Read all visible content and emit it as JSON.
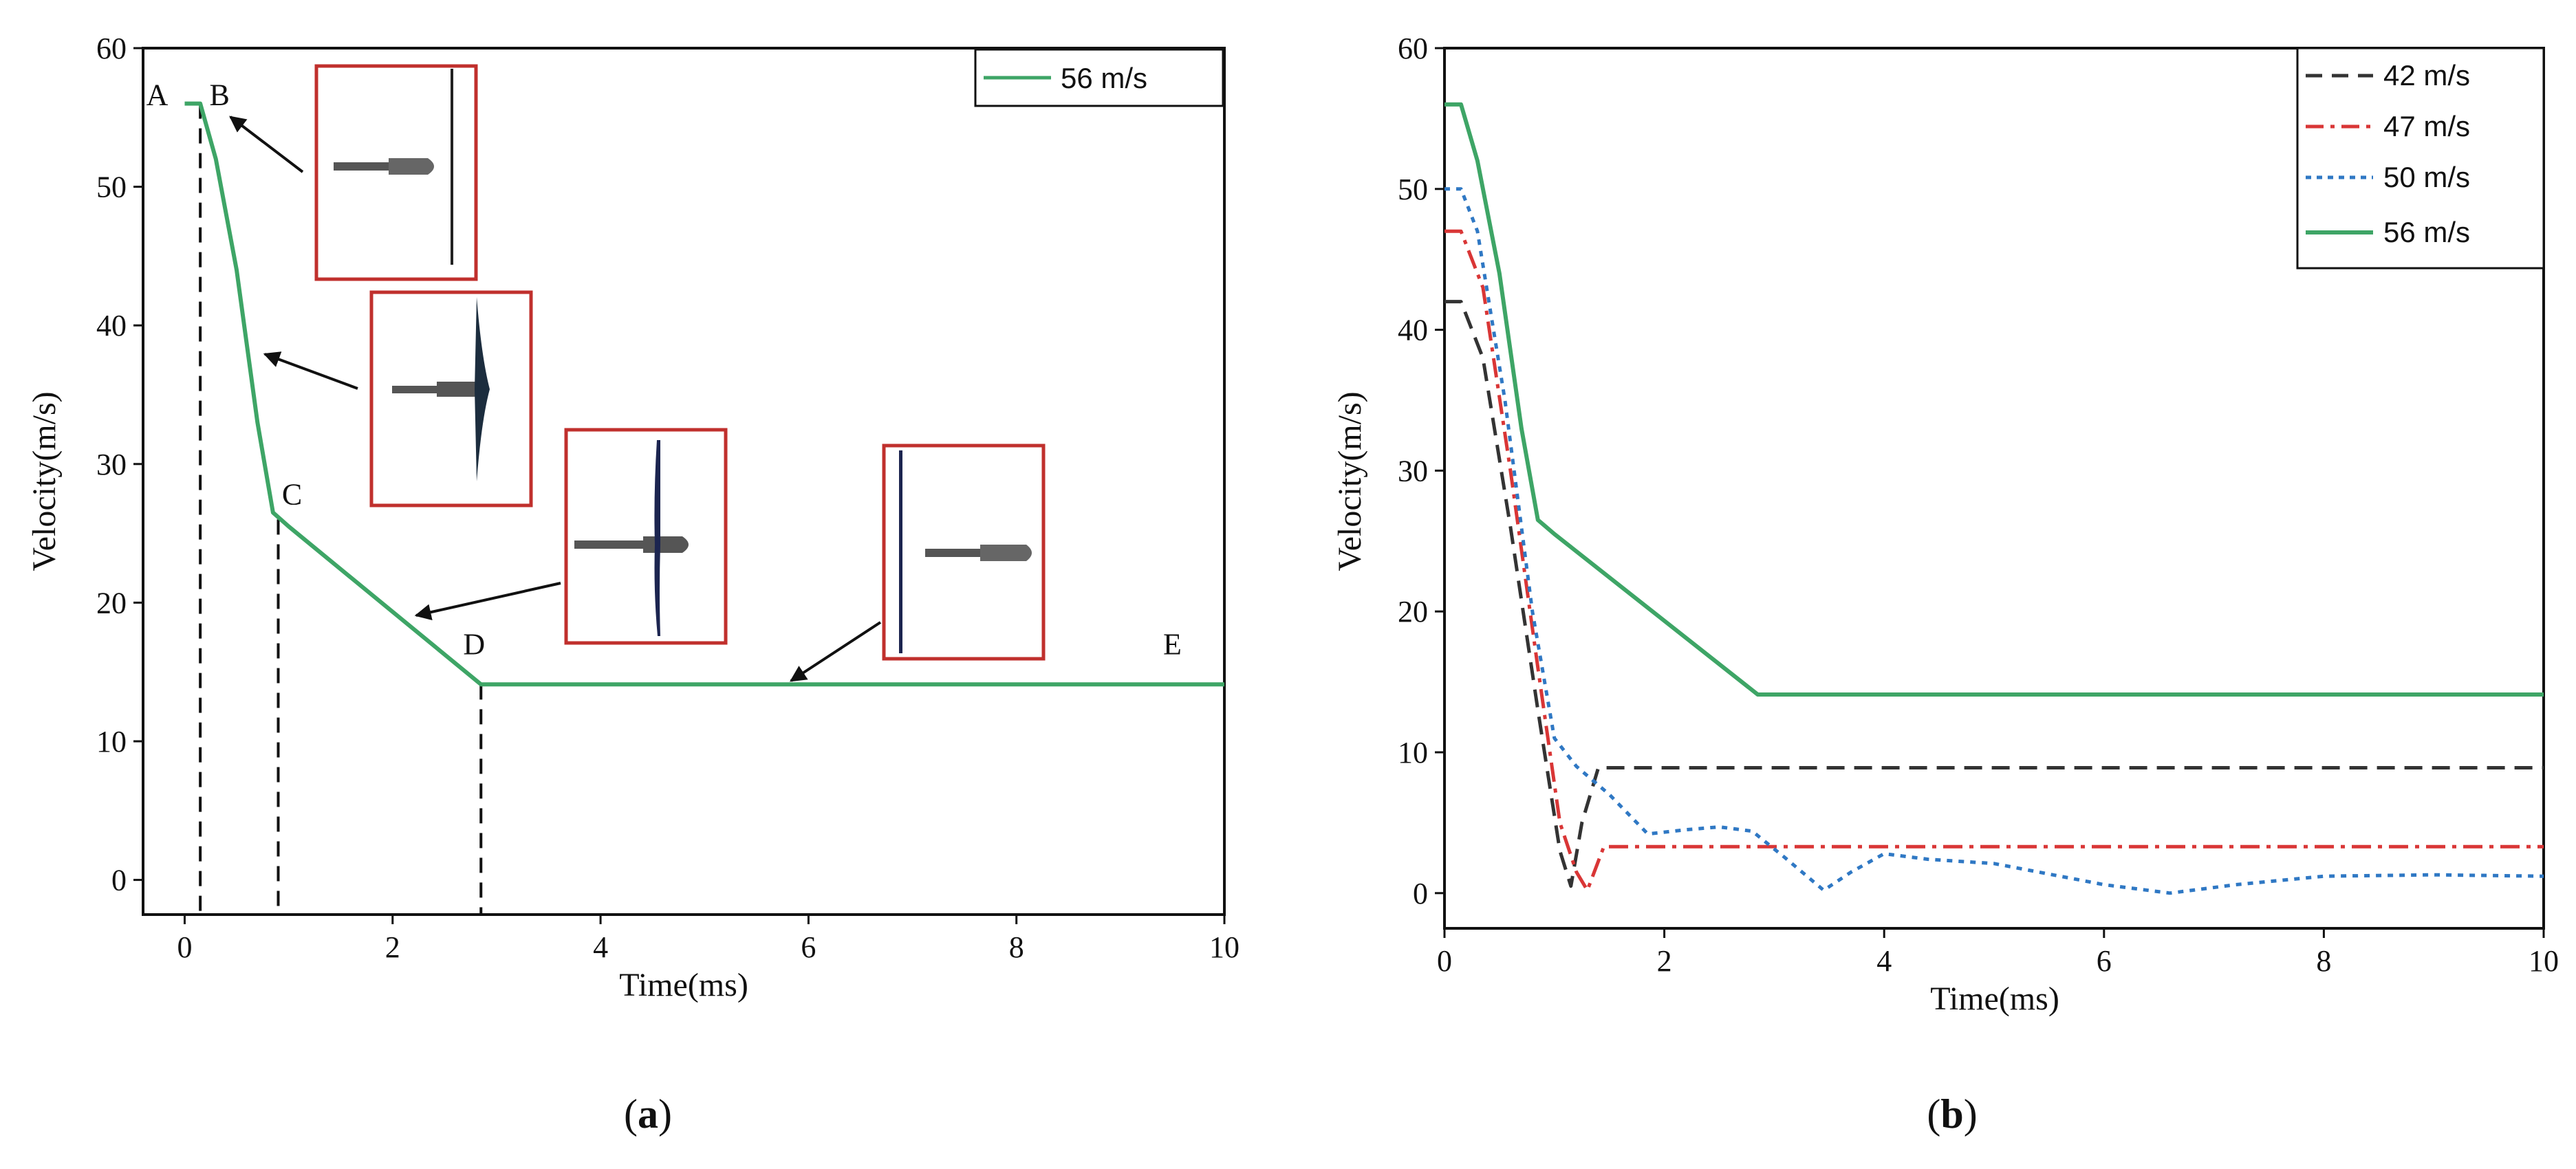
{
  "chart_data": [
    {
      "panel": "a",
      "type": "line",
      "caption_letter": "a",
      "xlabel": "Time(ms)",
      "ylabel": "Velocity(m/s)",
      "xlim": [
        -0.4,
        10
      ],
      "ylim": [
        -2.5,
        60
      ],
      "xticks": [
        0,
        2,
        4,
        6,
        8,
        10
      ],
      "yticks": [
        0,
        10,
        20,
        30,
        40,
        50,
        60
      ],
      "legend_position": "top-right",
      "series": [
        {
          "name": "56 m/s",
          "color": "#3ea566",
          "style": "solid",
          "x": [
            0,
            0.15,
            0.3,
            0.5,
            0.7,
            0.85,
            1.0,
            2.85,
            10
          ],
          "y": [
            56,
            56,
            52,
            44,
            33,
            26.5,
            25.5,
            14.1,
            14.1
          ]
        }
      ],
      "points": [
        {
          "label": "A",
          "x": 0.0,
          "y": 56
        },
        {
          "label": "B",
          "x": 0.15,
          "y": 56
        },
        {
          "label": "C",
          "x": 0.9,
          "y": 26
        },
        {
          "label": "D",
          "x": 2.85,
          "y": 14.1
        },
        {
          "label": "E",
          "x": 9.5,
          "y": 14.1
        }
      ],
      "phase_lines_x": [
        0.15,
        0.9,
        2.85
      ],
      "inset_images": [
        {
          "name": "inset-b",
          "desc": "projectile approaching plate"
        },
        {
          "name": "inset-b-c",
          "desc": "projectile penetrating plate"
        },
        {
          "name": "inset-c-d",
          "desc": "plate petalling"
        },
        {
          "name": "inset-d-e",
          "desc": "projectile passed plate"
        }
      ]
    },
    {
      "panel": "b",
      "type": "line",
      "caption_letter": "b",
      "xlabel": "Time(ms)",
      "ylabel": "Velocity(m/s)",
      "xlim": [
        0,
        10
      ],
      "ylim": [
        -2.5,
        60
      ],
      "xticks": [
        0,
        2,
        4,
        6,
        8,
        10
      ],
      "yticks": [
        0,
        10,
        20,
        30,
        40,
        50,
        60
      ],
      "legend_position": "top-right",
      "series": [
        {
          "name": "42 m/s",
          "color": "#333333",
          "style": "dash",
          "x": [
            0,
            0.15,
            0.35,
            0.6,
            0.85,
            1.05,
            1.15,
            1.25,
            1.4,
            10
          ],
          "y": [
            42,
            42,
            38,
            26,
            13,
            3,
            0.5,
            5,
            8.9,
            8.9
          ]
        },
        {
          "name": "47 m/s",
          "color": "#d93636",
          "style": "dashdot",
          "x": [
            0,
            0.15,
            0.35,
            0.6,
            0.85,
            1.05,
            1.2,
            1.3,
            1.45,
            10
          ],
          "y": [
            47,
            47,
            43,
            30,
            16,
            5,
            1.5,
            0.2,
            3.3,
            3.3
          ]
        },
        {
          "name": "50 m/s",
          "color": "#2f78c4",
          "style": "dot",
          "x": [
            0,
            0.15,
            0.3,
            0.55,
            0.8,
            1.0,
            1.2,
            1.5,
            1.85,
            2.2,
            2.5,
            2.8,
            3.1,
            3.45,
            3.7,
            4.0,
            4.4,
            5.0,
            5.6,
            6.0,
            6.6,
            7.2,
            8.0,
            9.0,
            10
          ],
          "y": [
            50,
            50,
            47,
            35,
            20,
            11,
            9,
            7,
            4.2,
            4.5,
            4.7,
            4.4,
            2.5,
            0.2,
            1.5,
            2.8,
            2.4,
            2.1,
            1.2,
            0.6,
            0.0,
            0.6,
            1.2,
            1.3,
            1.2
          ]
        },
        {
          "name": "56 m/s",
          "color": "#3ea566",
          "style": "solid",
          "x": [
            0,
            0.15,
            0.3,
            0.5,
            0.7,
            0.85,
            1.0,
            2.85,
            10
          ],
          "y": [
            56,
            56,
            52,
            44,
            33,
            26.5,
            25.5,
            14.1,
            14.1
          ]
        }
      ]
    }
  ]
}
